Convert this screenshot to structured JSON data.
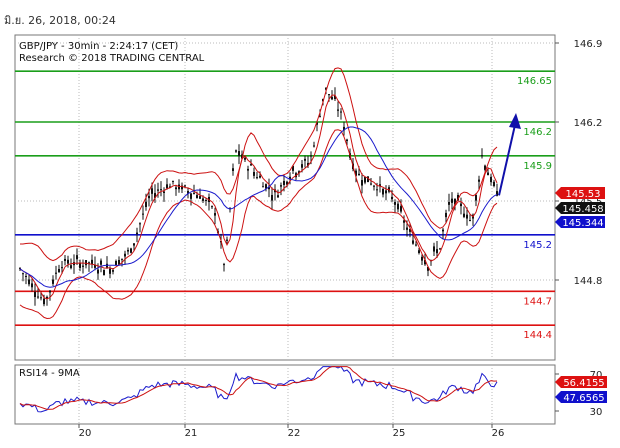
{
  "timestamp": "มิ.ย. 26, 2018, 00:24",
  "chart_data": [
    {
      "type": "candlestick",
      "symbol": "GBP/JPY",
      "title": "GBP/JPY - 30min - 2:24:17 (CET)",
      "subtitle": "Research © 2018 TRADING CENTRAL",
      "ylim": [
        144.15,
        146.95
      ],
      "y_ticks": [
        "146.9",
        "146.2",
        "145.5",
        "144.8"
      ],
      "x_ticks": [
        "20",
        "21",
        "22",
        "25",
        "26"
      ],
      "levels": [
        {
          "value": 146.65,
          "label": "146.65",
          "color": "#1a9e1a"
        },
        {
          "value": 146.2,
          "label": "146.2",
          "color": "#1a9e1a"
        },
        {
          "value": 145.9,
          "label": "145.9",
          "color": "#1a9e1a"
        },
        {
          "value": 145.2,
          "label": "145.2",
          "color": "#1010cc"
        },
        {
          "value": 144.7,
          "label": "144.7",
          "color": "#dd1111"
        },
        {
          "value": 144.4,
          "label": "144.4",
          "color": "#dd1111"
        }
      ],
      "price_tags": [
        {
          "label": "145.53",
          "color": "#dd1111"
        },
        {
          "label": "145.458",
          "color": "#111111"
        },
        {
          "label": "145.344",
          "color": "#1010cc"
        }
      ],
      "projection": {
        "from": 145.55,
        "to": 146.28
      },
      "grid": true
    },
    {
      "type": "line",
      "title": "RSI14 - 9MA",
      "ylim": [
        20,
        80
      ],
      "y_ticks": [
        "70",
        "30"
      ],
      "price_tags": [
        {
          "label": "56.4155",
          "color": "#dd1111"
        },
        {
          "label": "47.6565",
          "color": "#1010cc"
        }
      ]
    }
  ]
}
